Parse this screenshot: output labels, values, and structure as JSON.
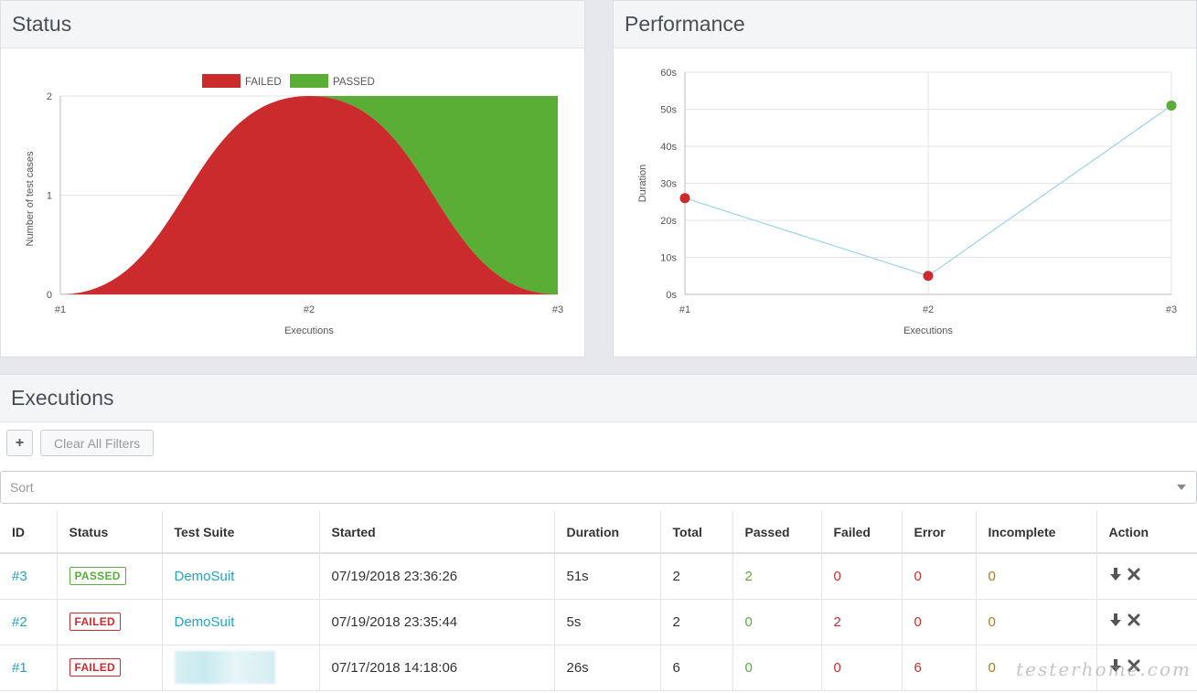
{
  "status_panel": {
    "title": "Status",
    "chart_data": {
      "type": "area",
      "x": [
        "#1",
        "#2",
        "#3"
      ],
      "series": [
        {
          "name": "FAILED",
          "values": [
            0,
            2,
            0
          ],
          "color": "#cc2b2e"
        },
        {
          "name": "PASSED",
          "values": [
            0,
            0,
            2
          ],
          "color": "#5aae36"
        }
      ],
      "stacked": true,
      "xlabel": "Executions",
      "ylabel": "Number of test cases",
      "ylim": [
        0,
        2
      ],
      "yticks": [
        "0",
        "1",
        "2"
      ],
      "legend": "top-center",
      "grid": true
    }
  },
  "perf_panel": {
    "title": "Performance",
    "chart_data": {
      "type": "line",
      "x": [
        "#1",
        "#2",
        "#3"
      ],
      "series": [
        {
          "values": [
            26,
            5,
            51
          ],
          "point_colors": [
            "#cc2b2e",
            "#cc2b2e",
            "#5aae36"
          ]
        }
      ],
      "line_color": "#9bd3e6",
      "xlabel": "Executions",
      "ylabel": "Duration",
      "ylim": [
        0,
        60
      ],
      "yticks": [
        "0s",
        "10s",
        "20s",
        "30s",
        "40s",
        "50s",
        "60s"
      ],
      "grid": true
    }
  },
  "executions": {
    "title": "Executions",
    "add_button": "+",
    "clear_filters": "Clear All Filters",
    "sort_placeholder": "Sort",
    "columns": [
      "ID",
      "Status",
      "Test Suite",
      "Started",
      "Duration",
      "Total",
      "Passed",
      "Failed",
      "Error",
      "Incomplete",
      "Action"
    ],
    "rows": [
      {
        "id": "#3",
        "status": "PASSED",
        "suite": "DemoSuit",
        "started": "07/19/2018 23:36:26",
        "duration": "51s",
        "total": "2",
        "passed": "2",
        "failed": "0",
        "error": "0",
        "incomplete": "0"
      },
      {
        "id": "#2",
        "status": "FAILED",
        "suite": "DemoSuit",
        "started": "07/19/2018 23:35:44",
        "duration": "5s",
        "total": "2",
        "passed": "0",
        "failed": "2",
        "error": "0",
        "incomplete": "0"
      },
      {
        "id": "#1",
        "status": "FAILED",
        "suite": "",
        "started": "07/17/2018 14:18:06",
        "duration": "26s",
        "total": "6",
        "passed": "0",
        "failed": "0",
        "error": "6",
        "incomplete": "0"
      }
    ]
  },
  "watermark": "testerhome.com"
}
